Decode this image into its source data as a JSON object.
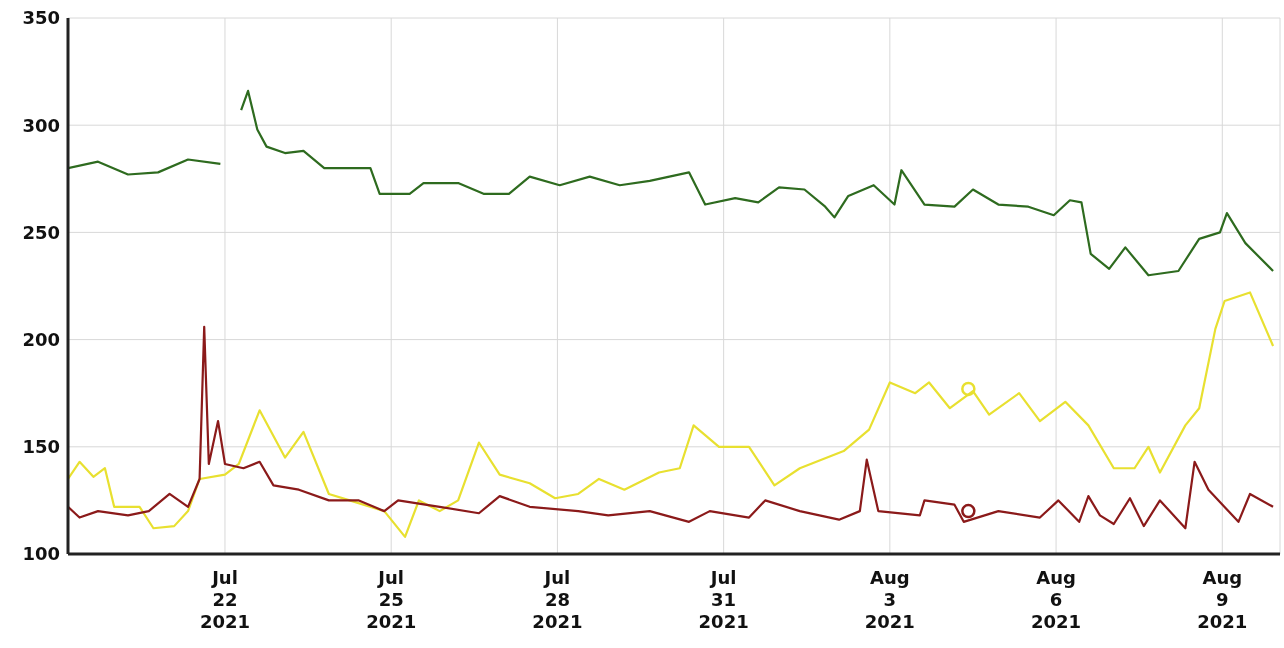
{
  "chart_data": {
    "type": "line",
    "xlim": [
      "2021-07-19T04:00",
      "2021-08-10T01:00"
    ],
    "xticks": [
      {
        "value": "2021-07-22",
        "label": "Jul 22 2021"
      },
      {
        "value": "2021-07-25",
        "label": "Jul 25 2021"
      },
      {
        "value": "2021-07-28",
        "label": "Jul 28 2021"
      },
      {
        "value": "2021-07-31",
        "label": "Jul 31 2021"
      },
      {
        "value": "2021-08-03",
        "label": "Aug 3 2021"
      },
      {
        "value": "2021-08-06",
        "label": "Aug 6 2021"
      },
      {
        "value": "2021-08-09",
        "label": "Aug 9 2021"
      }
    ],
    "ylim": [
      100,
      350
    ],
    "yticks": [
      100,
      150,
      200,
      250,
      300,
      350
    ],
    "grid": true,
    "marker": "none",
    "line_style": "solid",
    "series": [
      {
        "color": "#2e6b1f",
        "x": [
          "2021-07-19T04:00",
          "2021-07-19T17:00",
          "2021-07-20T06:00",
          "2021-07-20T19:00",
          "2021-07-21T08:00",
          "2021-07-21T22:00",
          "2021-07-22T02:00",
          "2021-07-22T07:00",
          "2021-07-22T10:00",
          "2021-07-22T14:00",
          "2021-07-22T18:00",
          "2021-07-23T02:00",
          "2021-07-23T10:00",
          "2021-07-23T19:00",
          "2021-07-24T06:00",
          "2021-07-24T15:00",
          "2021-07-24T19:00",
          "2021-07-25T08:00",
          "2021-07-25T14:00",
          "2021-07-26T05:00",
          "2021-07-26T16:00",
          "2021-07-27T03:00",
          "2021-07-27T12:00",
          "2021-07-28T01:00",
          "2021-07-28T14:00",
          "2021-07-29T03:00",
          "2021-07-29T16:00",
          "2021-07-30T09:00",
          "2021-07-30T16:00",
          "2021-07-31T05:00",
          "2021-07-31T15:00",
          "2021-08-01T00:00",
          "2021-08-01T11:00",
          "2021-08-01T20:00",
          "2021-08-02T00:00",
          "2021-08-02T06:00",
          "2021-08-02T17:00",
          "2021-08-03T02:00",
          "2021-08-03T05:00",
          "2021-08-03T15:00",
          "2021-08-04T04:00",
          "2021-08-04T12:00",
          "2021-08-04T23:00",
          "2021-08-05T12:00",
          "2021-08-05T23:00",
          "2021-08-06T06:00",
          "2021-08-06T11:00",
          "2021-08-06T15:00",
          "2021-08-06T23:00",
          "2021-08-07T06:00",
          "2021-08-07T16:00",
          "2021-08-08T05:00",
          "2021-08-08T14:00",
          "2021-08-08T23:00",
          "2021-08-09T02:00",
          "2021-08-09T10:00",
          "2021-08-09T22:00"
        ],
        "values": [
          280,
          283,
          277,
          278,
          284,
          282,
          null,
          307,
          316,
          298,
          290,
          287,
          288,
          280,
          280,
          280,
          268,
          268,
          273,
          273,
          268,
          268,
          276,
          272,
          276,
          272,
          274,
          278,
          263,
          266,
          264,
          271,
          270,
          262,
          257,
          267,
          272,
          263,
          279,
          263,
          262,
          270,
          263,
          262,
          258,
          265,
          264,
          240,
          233,
          243,
          230,
          232,
          247,
          250,
          259,
          245,
          232
        ]
      },
      {
        "color": "#e8e030",
        "x": [
          "2021-07-19T04:00",
          "2021-07-19T09:00",
          "2021-07-19T15:00",
          "2021-07-19T20:00",
          "2021-07-20T00:00",
          "2021-07-20T11:00",
          "2021-07-20T17:00",
          "2021-07-21T02:00",
          "2021-07-21T08:00",
          "2021-07-21T13:00",
          "2021-07-22T00:00",
          "2021-07-22T06:00",
          "2021-07-22T15:00",
          "2021-07-23T02:00",
          "2021-07-23T10:00",
          "2021-07-23T21:00",
          "2021-07-24T06:00",
          "2021-07-24T21:00",
          "2021-07-25T06:00",
          "2021-07-25T12:00",
          "2021-07-25T21:00",
          "2021-07-26T05:00",
          "2021-07-26T14:00",
          "2021-07-26T23:00",
          "2021-07-27T12:00",
          "2021-07-27T23:00",
          "2021-07-28T09:00",
          "2021-07-28T18:00",
          "2021-07-29T05:00",
          "2021-07-29T20:00",
          "2021-07-30T05:00",
          "2021-07-30T11:00",
          "2021-07-30T22:00",
          "2021-07-31T11:00",
          "2021-07-31T22:00",
          "2021-08-01T09:00",
          "2021-08-02T04:00",
          "2021-08-02T15:00",
          "2021-08-03T00:00",
          "2021-08-03T11:00",
          "2021-08-03T17:00",
          "2021-08-04T02:00",
          "2021-08-04T12:00",
          "2021-08-04T19:00",
          "2021-08-05T08:00",
          "2021-08-05T17:00",
          "2021-08-06T04:00",
          "2021-08-06T14:00",
          "2021-08-07T01:00",
          "2021-08-07T10:00",
          "2021-08-07T16:00",
          "2021-08-07T21:00",
          "2021-08-08T08:00",
          "2021-08-08T14:00",
          "2021-08-08T21:00",
          "2021-08-09T01:00",
          "2021-08-09T12:00",
          "2021-08-09T22:00"
        ],
        "values": [
          135,
          143,
          136,
          140,
          122,
          122,
          112,
          113,
          120,
          135,
          137,
          142,
          167,
          145,
          157,
          128,
          125,
          120,
          108,
          125,
          120,
          125,
          152,
          137,
          133,
          126,
          128,
          135,
          130,
          138,
          140,
          160,
          150,
          150,
          132,
          140,
          148,
          158,
          180,
          175,
          180,
          168,
          176,
          165,
          175,
          162,
          171,
          160,
          140,
          140,
          150,
          138,
          160,
          168,
          205,
          218,
          222,
          197
        ]
      },
      {
        "color": "#8b1a1a",
        "x": [
          "2021-07-19T04:00",
          "2021-07-19T09:00",
          "2021-07-19T17:00",
          "2021-07-20T06:00",
          "2021-07-20T15:00",
          "2021-07-21T00:00",
          "2021-07-21T08:00",
          "2021-07-21T13:00",
          "2021-07-21T15:00",
          "2021-07-21T17:00",
          "2021-07-21T21:00",
          "2021-07-22T00:00",
          "2021-07-22T08:00",
          "2021-07-22T15:00",
          "2021-07-22T21:00",
          "2021-07-23T08:00",
          "2021-07-23T21:00",
          "2021-07-24T10:00",
          "2021-07-24T21:00",
          "2021-07-25T03:00",
          "2021-07-25T21:00",
          "2021-07-26T14:00",
          "2021-07-26T23:00",
          "2021-07-27T12:00",
          "2021-07-28T09:00",
          "2021-07-28T22:00",
          "2021-07-29T16:00",
          "2021-07-30T09:00",
          "2021-07-30T18:00",
          "2021-07-31T11:00",
          "2021-07-31T18:00",
          "2021-08-01T09:00",
          "2021-08-02T02:00",
          "2021-08-02T11:00",
          "2021-08-02T14:00",
          "2021-08-02T19:00",
          "2021-08-03T13:00",
          "2021-08-03T15:00",
          "2021-08-04T04:00",
          "2021-08-04T08:00",
          "2021-08-04T23:00",
          "2021-08-05T17:00",
          "2021-08-06T01:00",
          "2021-08-06T10:00",
          "2021-08-06T14:00",
          "2021-08-06T19:00",
          "2021-08-07T01:00",
          "2021-08-07T08:00",
          "2021-08-07T14:00",
          "2021-08-07T21:00",
          "2021-08-08T08:00",
          "2021-08-08T12:00",
          "2021-08-08T18:00",
          "2021-08-09T07:00",
          "2021-08-09T12:00",
          "2021-08-09T22:00"
        ],
        "values": [
          122,
          117,
          120,
          118,
          120,
          128,
          122,
          135,
          206,
          142,
          162,
          142,
          140,
          143,
          132,
          130,
          125,
          125,
          120,
          125,
          122,
          119,
          127,
          122,
          120,
          118,
          120,
          115,
          120,
          117,
          125,
          120,
          116,
          120,
          144,
          120,
          118,
          125,
          123,
          115,
          120,
          117,
          125,
          115,
          127,
          118,
          114,
          126,
          113,
          125,
          112,
          143,
          130,
          115,
          128,
          122
        ]
      },
      {
        "type": "scatter",
        "marker": "circle",
        "color": "#e8e030",
        "x": [
          "2021-08-04T10:00"
        ],
        "values": [
          177
        ]
      },
      {
        "type": "scatter",
        "marker": "circle",
        "color": "#8b1a1a",
        "x": [
          "2021-08-04T10:00"
        ],
        "values": [
          120
        ]
      }
    ]
  }
}
